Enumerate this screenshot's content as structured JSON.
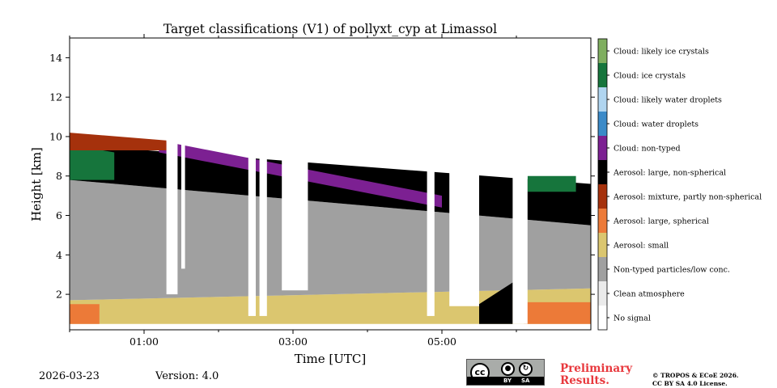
{
  "chart_data": {
    "type": "heatmap",
    "title": "Target classifications (V1) of pollyxt_cyp at Limassol",
    "xlabel": "Time [UTC]",
    "ylabel": "Height [km]",
    "xlim": [
      0.0,
      7.0
    ],
    "ylim": [
      0.2,
      15.0
    ],
    "x_ticks": [
      {
        "value": 1,
        "label": "01:00"
      },
      {
        "value": 3,
        "label": "03:00"
      },
      {
        "value": 5,
        "label": "05:00"
      }
    ],
    "x_minor_ticks": [
      0,
      2,
      4,
      6
    ],
    "y_ticks": [
      {
        "value": 2,
        "label": "2"
      },
      {
        "value": 4,
        "label": "4"
      },
      {
        "value": 6,
        "label": "6"
      },
      {
        "value": 8,
        "label": "8"
      },
      {
        "value": 10,
        "label": "10"
      },
      {
        "value": 12,
        "label": "12"
      },
      {
        "value": 14,
        "label": "14"
      }
    ],
    "classes": [
      {
        "code": 0,
        "label": "No signal",
        "color": "#ffffff"
      },
      {
        "code": 1,
        "label": "Clean atmosphere",
        "color": "#ebebeb"
      },
      {
        "code": 2,
        "label": "Non-typed particles/low conc.",
        "color": "#a0a0a0"
      },
      {
        "code": 3,
        "label": "Aerosol: small",
        "color": "#dbc66f"
      },
      {
        "code": 4,
        "label": "Aerosol: large, spherical",
        "color": "#ec7a38"
      },
      {
        "code": 5,
        "label": "Aerosol: mixture, partly non-spherical",
        "color": "#a5310c"
      },
      {
        "code": 6,
        "label": "Aerosol: large, non-spherical",
        "color": "#000000"
      },
      {
        "code": 7,
        "label": "Cloud: non-typed",
        "color": "#7c2092"
      },
      {
        "code": 8,
        "label": "Cloud: water droplets",
        "color": "#3b8ac8"
      },
      {
        "code": 9,
        "label": "Cloud: likely water droplets",
        "color": "#b0d5f0"
      },
      {
        "code": 10,
        "label": "Cloud: ice crystals",
        "color": "#16753c"
      },
      {
        "code": 11,
        "label": "Cloud: likely ice crystals",
        "color": "#7fae5f"
      }
    ],
    "regions": [
      {
        "class": 3,
        "t": [
          0.0,
          7.0
        ],
        "bottom": 0.5,
        "top_start": 1.7,
        "top_end": 2.3
      },
      {
        "class": 4,
        "t": [
          0.0,
          0.4
        ],
        "bottom": 0.5,
        "top_start": 1.5,
        "top_end": 1.5
      },
      {
        "class": 4,
        "t": [
          6.1,
          7.0
        ],
        "bottom": 0.5,
        "top_start": 1.6,
        "top_end": 1.6
      },
      {
        "class": 2,
        "t": [
          0.0,
          7.0
        ],
        "bottom_start": 1.7,
        "bottom_end": 2.3,
        "top_start": 7.8,
        "top_end": 5.5
      },
      {
        "class": 6,
        "t": [
          0.0,
          7.0
        ],
        "bottom_start": 7.8,
        "bottom_end": 5.5,
        "top_start": 9.6,
        "top_end": 7.6
      },
      {
        "class": 7,
        "t": [
          1.2,
          5.0
        ],
        "bottom_start": 9.2,
        "bottom_end": 6.4,
        "top_start": 9.8,
        "top_end": 7.0
      },
      {
        "class": 10,
        "t": [
          0.0,
          0.6
        ],
        "bottom": 7.8,
        "top_start": 9.6,
        "top_end": 9.2
      },
      {
        "class": 10,
        "t": [
          6.15,
          6.8
        ],
        "bottom": 7.2,
        "top_start": 8.0,
        "top_end": 8.0
      },
      {
        "class": 5,
        "t": [
          0.0,
          1.3
        ],
        "bottom": 9.3,
        "top_start": 10.2,
        "top_end": 9.8
      },
      {
        "class": 6,
        "t": [
          5.5,
          5.95
        ],
        "bottom": 0.5,
        "top_start": 1.5,
        "top_end": 2.6
      }
    ],
    "no_signal_gaps": [
      {
        "t": [
          1.3,
          1.45
        ],
        "bottom": 2.0
      },
      {
        "t": [
          1.5,
          1.55
        ],
        "bottom": 3.3
      },
      {
        "t": [
          2.4,
          2.5
        ],
        "bottom": 0.9
      },
      {
        "t": [
          2.55,
          2.65
        ],
        "bottom": 0.9
      },
      {
        "t": [
          2.85,
          3.2
        ],
        "bottom": 2.2
      },
      {
        "t": [
          4.8,
          4.9
        ],
        "bottom": 0.9
      },
      {
        "t": [
          5.1,
          5.5
        ],
        "bottom": 1.4
      },
      {
        "t": [
          5.95,
          6.15
        ],
        "bottom": 0.5
      }
    ]
  },
  "footer": {
    "date": "2026-03-23",
    "version": "Version: 4.0",
    "preliminary": [
      "Preliminary",
      "Results."
    ],
    "copyright": [
      "© TROPOS & ECoE 2026.",
      "CC BY SA 4.0 License."
    ],
    "license_badge": {
      "cc": "cc",
      "by": "BY",
      "sa": "SA"
    }
  }
}
